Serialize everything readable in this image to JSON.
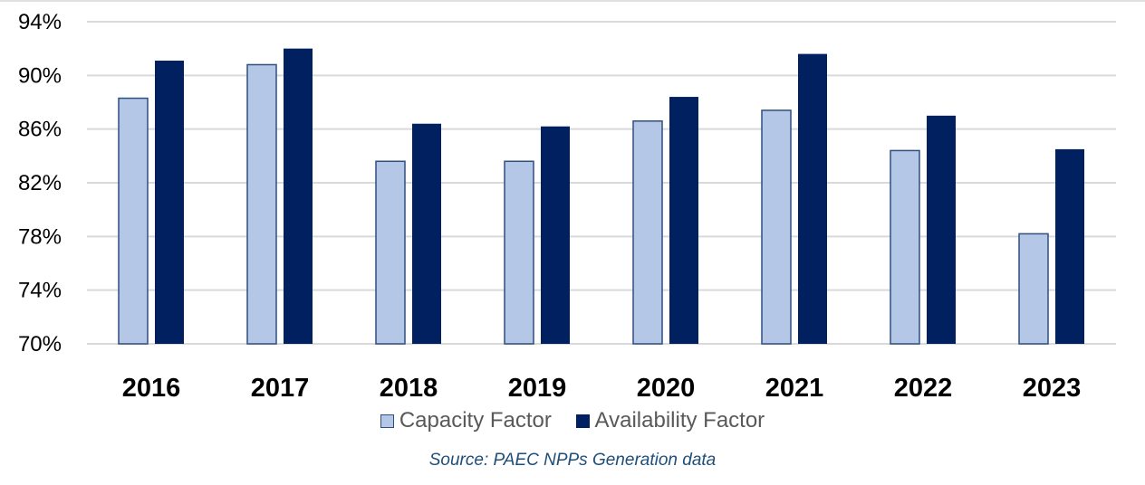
{
  "chart_data": {
    "type": "bar",
    "categories": [
      "2016",
      "2017",
      "2018",
      "2019",
      "2020",
      "2021",
      "2022",
      "2023"
    ],
    "series": [
      {
        "name": "Capacity Factor",
        "color": "#b4c7e7",
        "values": [
          88.3,
          90.8,
          83.6,
          83.6,
          86.6,
          87.4,
          84.4,
          78.2
        ]
      },
      {
        "name": "Availability Factor",
        "color": "#002060",
        "values": [
          91.1,
          92.0,
          86.4,
          86.2,
          88.4,
          91.6,
          87.0,
          84.5
        ]
      }
    ],
    "yticks": [
      "70%",
      "74%",
      "78%",
      "82%",
      "86%",
      "90%",
      "94%"
    ],
    "ylim": [
      70,
      94
    ],
    "grid": true,
    "legend": "bottom",
    "source": "Source: PAEC NPPs Generation data"
  }
}
